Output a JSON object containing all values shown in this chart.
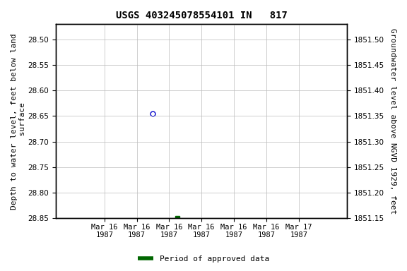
{
  "title": "USGS 403245078554101 IN   817",
  "ylabel_left": "Depth to water level, feet below land\n surface",
  "ylabel_right": "Groundwater level above NGVD 1929, feet",
  "ylim_left": [
    28.85,
    28.47
  ],
  "ylim_right": [
    1851.15,
    1851.53
  ],
  "yticks_left": [
    28.5,
    28.55,
    28.6,
    28.65,
    28.7,
    28.75,
    28.8,
    28.85
  ],
  "yticks_right": [
    1851.5,
    1851.45,
    1851.4,
    1851.35,
    1851.3,
    1851.25,
    1851.2,
    1851.15
  ],
  "point_blue_x_hours": 12,
  "point_blue_y": 28.645,
  "point_green_x_hours": 15,
  "point_green_y": 28.85,
  "blue_color": "#0000cc",
  "green_color": "#006600",
  "background_color": "#ffffff",
  "grid_color": "#bbbbbb",
  "title_fontsize": 10,
  "axis_label_fontsize": 8,
  "tick_fontsize": 7.5,
  "legend_label": "Period of approved data",
  "xaxis_start_hours": 0,
  "xaxis_end_hours": 36,
  "xtick_hours": [
    6,
    10,
    14,
    18,
    22,
    26,
    30
  ],
  "xtick_labels": [
    "Mar 16\n1987",
    "Mar 16\n1987",
    "Mar 16\n1987",
    "Mar 16\n1987",
    "Mar 16\n1987",
    "Mar 16\n1987",
    "Mar 17\n1987"
  ]
}
